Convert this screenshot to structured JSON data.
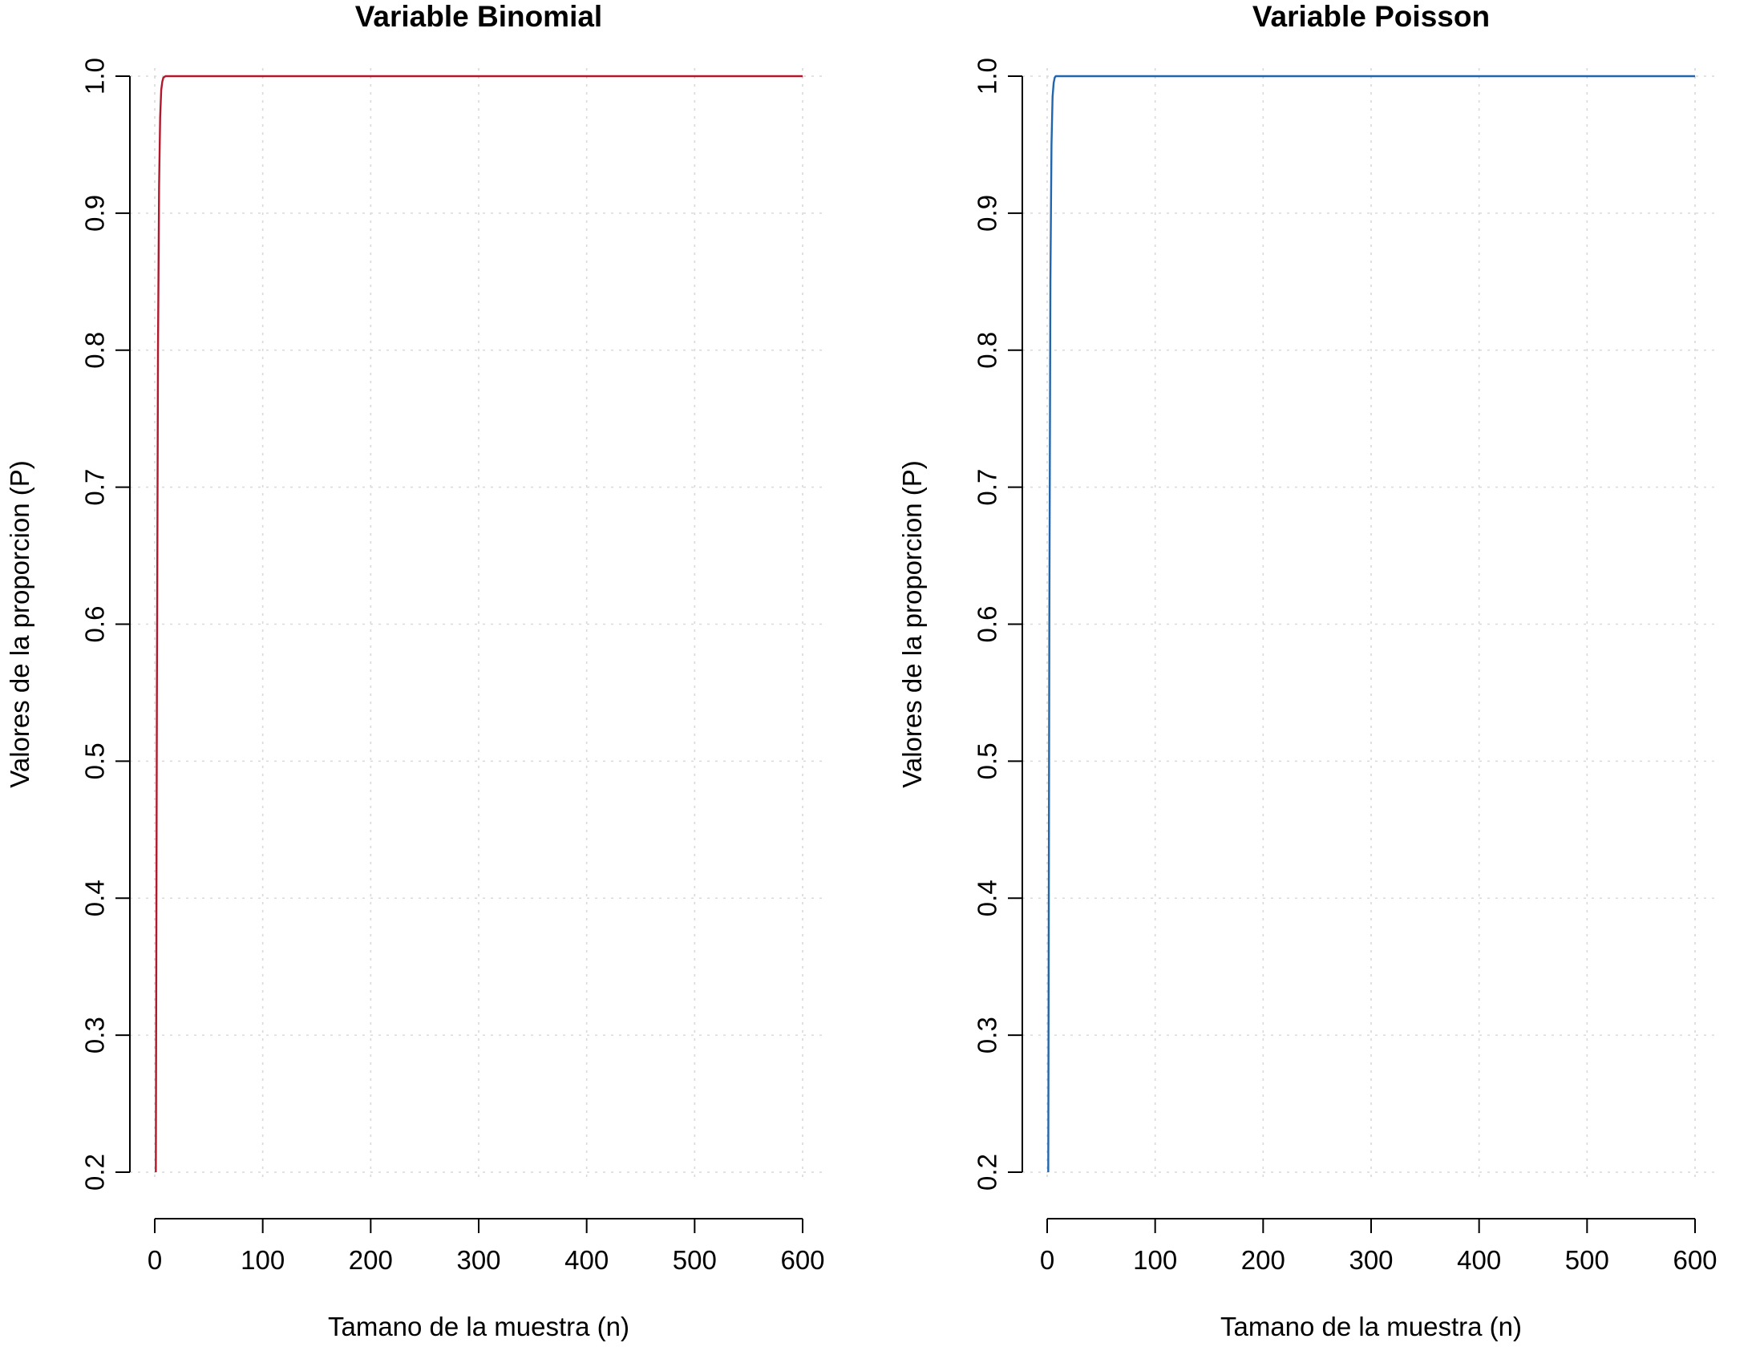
{
  "chart_data": [
    {
      "type": "line",
      "title": "Variable Binomial",
      "xlabel": "Tamano de la muestra (n)",
      "ylabel": "Valores de la proporcion (P)",
      "xlim": [
        0,
        600
      ],
      "ylim": [
        0.2,
        1.0
      ],
      "x_ticks": [
        "0",
        "100",
        "200",
        "300",
        "400",
        "500",
        "600"
      ],
      "y_ticks": [
        "0.2",
        "0.3",
        "0.4",
        "0.5",
        "0.6",
        "0.7",
        "0.8",
        "0.9",
        "1.0"
      ],
      "grid": true,
      "series": [
        {
          "color": "#b2182b",
          "x": [
            1,
            2,
            3,
            4,
            5,
            6,
            7,
            8,
            10,
            15,
            50,
            100,
            200,
            300,
            400,
            500,
            600
          ],
          "y": [
            0.2,
            0.55,
            0.8,
            0.92,
            0.97,
            0.99,
            0.996,
            0.999,
            1.0,
            1.0,
            1.0,
            1.0,
            1.0,
            1.0,
            1.0,
            1.0,
            1.0
          ]
        }
      ]
    },
    {
      "type": "line",
      "title": "Variable Poisson",
      "xlabel": "Tamano de la muestra (n)",
      "ylabel": "Valores de la proporcion (P)",
      "xlim": [
        0,
        600
      ],
      "ylim": [
        0.2,
        1.0
      ],
      "x_ticks": [
        "0",
        "100",
        "200",
        "300",
        "400",
        "500",
        "600"
      ],
      "y_ticks": [
        "0.2",
        "0.3",
        "0.4",
        "0.5",
        "0.6",
        "0.7",
        "0.8",
        "0.9",
        "1.0"
      ],
      "grid": true,
      "series": [
        {
          "color": "#2166ac",
          "x": [
            1,
            2,
            3,
            4,
            5,
            6,
            7,
            8,
            10,
            15,
            50,
            100,
            200,
            300,
            400,
            500,
            600
          ],
          "y": [
            0.2,
            0.6,
            0.85,
            0.95,
            0.985,
            0.995,
            0.999,
            1.0,
            1.0,
            1.0,
            1.0,
            1.0,
            1.0,
            1.0,
            1.0,
            1.0,
            1.0
          ]
        }
      ]
    }
  ]
}
